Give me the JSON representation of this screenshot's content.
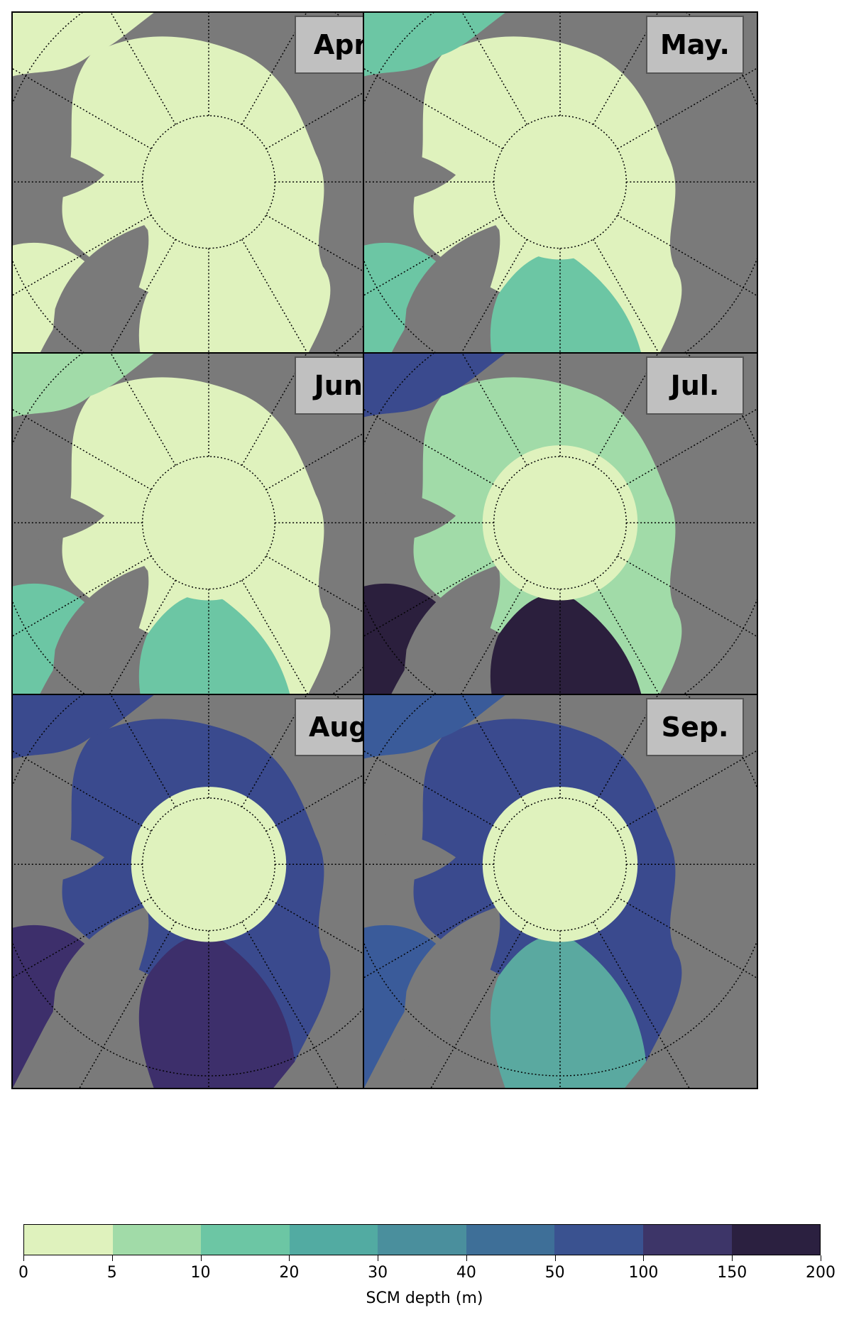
{
  "panels": [
    {
      "id": "apr",
      "label": "Apr.",
      "inner": "#dff2bd",
      "outer": "#dff2bd",
      "atlantic": "#dff2bd",
      "pacific": "#dff2bd",
      "baffin": "#dff2bd"
    },
    {
      "id": "may",
      "label": "May.",
      "inner": "#dff2bd",
      "outer": "#dff2bd",
      "atlantic": "#6cc6a4",
      "pacific": "#6cc6a4",
      "baffin": "#6cc6a4"
    },
    {
      "id": "jun",
      "label": "Jun.",
      "inner": "#dff2bd",
      "outer": "#dff2bd",
      "atlantic": "#6cc6a4",
      "pacific": "#a1dba8",
      "baffin": "#6cc6a4"
    },
    {
      "id": "jul",
      "label": "Jul.",
      "inner": "#dff2bd",
      "outer": "#a1dba8",
      "atlantic": "#2b1f3d",
      "pacific": "#3a4a8e",
      "baffin": "#2b1f3d"
    },
    {
      "id": "aug",
      "label": "Aug.",
      "inner": "#dff2bd",
      "outer": "#3a4a8e",
      "atlantic": "#3d2f6b",
      "pacific": "#3a4a8e",
      "baffin": "#3d2f6b"
    },
    {
      "id": "sep",
      "label": "Sep.",
      "inner": "#dff2bd",
      "outer": "#3a4a8e",
      "atlantic": "#5aa9a0",
      "pacific": "#3a5b9a",
      "baffin": "#3a5b9a"
    }
  ],
  "colorbar": {
    "label": "SCM depth (m)",
    "ticks": [
      "0",
      "5",
      "10",
      "20",
      "30",
      "40",
      "50",
      "100",
      "150",
      "200"
    ],
    "colors": [
      "#dff2bd",
      "#a1dba8",
      "#6cc6a4",
      "#52aba2",
      "#4a8f9d",
      "#3e6f98",
      "#3a5290",
      "#3d3568",
      "#2b2040"
    ]
  }
}
